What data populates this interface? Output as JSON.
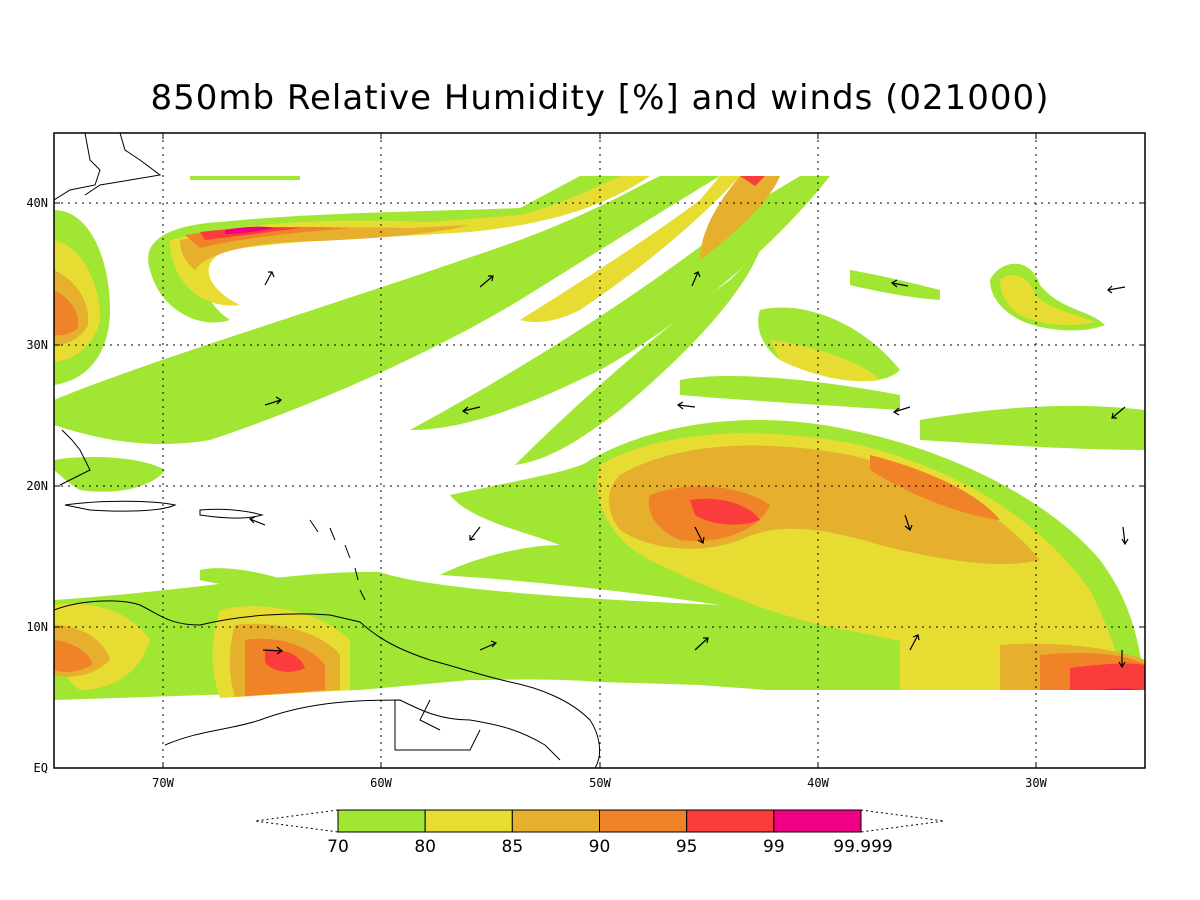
{
  "title": "850mb Relative Humidity [%] and winds (021000)",
  "map": {
    "lon_range": [
      -75,
      -25
    ],
    "lat_range": [
      0,
      45
    ],
    "lat_ticks": [
      {
        "value": 40,
        "label": "40N"
      },
      {
        "value": 30,
        "label": "30N"
      },
      {
        "value": 20,
        "label": "20N"
      },
      {
        "value": 10,
        "label": "10N"
      },
      {
        "value": 0,
        "label": "EQ"
      }
    ],
    "lon_ticks": [
      {
        "value": -70,
        "label": "70W"
      },
      {
        "value": -60,
        "label": "60W"
      },
      {
        "value": -50,
        "label": "50W"
      },
      {
        "value": -40,
        "label": "40W"
      },
      {
        "value": -30,
        "label": "30W"
      }
    ],
    "grid": "dotted",
    "data_lat_min": 4
  },
  "colorbar": {
    "bins": [
      {
        "color": "#a0e632"
      },
      {
        "color": "#e6dc32"
      },
      {
        "color": "#e6af2d"
      },
      {
        "color": "#f08228"
      },
      {
        "color": "#fa3c3c"
      },
      {
        "color": "#f00082"
      }
    ],
    "labels": [
      "70",
      "80",
      "85",
      "90",
      "95",
      "99",
      "99.999"
    ]
  }
}
